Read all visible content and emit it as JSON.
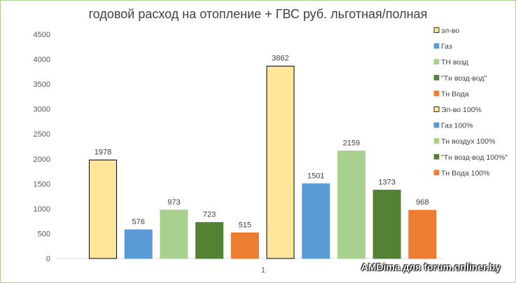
{
  "chart_data": {
    "type": "bar",
    "title": "годовой расход  на отопление + ГВС  руб.  льготная/полная",
    "categories": [
      "1"
    ],
    "ylim": [
      0,
      4500
    ],
    "yticks": [
      0,
      500,
      1000,
      1500,
      2000,
      2500,
      3000,
      3500,
      4000,
      4500
    ],
    "grid": false,
    "legend_position": "right",
    "series": [
      {
        "name": "эл-во",
        "values": [
          1978
        ],
        "color": "#ffe699",
        "stroke": "#000000"
      },
      {
        "name": "Газ",
        "values": [
          576
        ],
        "color": "#5b9bd5",
        "stroke": "#5b9bd5"
      },
      {
        "name": "ТН возд",
        "values": [
          973
        ],
        "color": "#a9d18e",
        "stroke": "#a9d18e"
      },
      {
        "name": "\"Тн возд-вод\"",
        "values": [
          723
        ],
        "color": "#548235",
        "stroke": "#548235"
      },
      {
        "name": "Тн Вода",
        "values": [
          515
        ],
        "color": "#ed7d31",
        "stroke": "#ed7d31"
      },
      {
        "name": "Эл-во 100%",
        "values": [
          3862
        ],
        "color": "#ffe699",
        "stroke": "#000000"
      },
      {
        "name": "Газ 100%",
        "values": [
          1501
        ],
        "color": "#5b9bd5",
        "stroke": "#5b9bd5"
      },
      {
        "name": "Тн воздух 100%",
        "values": [
          2159
        ],
        "color": "#a9d18e",
        "stroke": "#a9d18e"
      },
      {
        "name": "\"Тн возд-вод 100%\"",
        "values": [
          1373
        ],
        "color": "#548235",
        "stroke": "#548235"
      },
      {
        "name": "Тн Вода 100%",
        "values": [
          968
        ],
        "color": "#ed7d31",
        "stroke": "#ed7d31"
      }
    ]
  },
  "watermark": "AMDima для forum.onliner.by"
}
